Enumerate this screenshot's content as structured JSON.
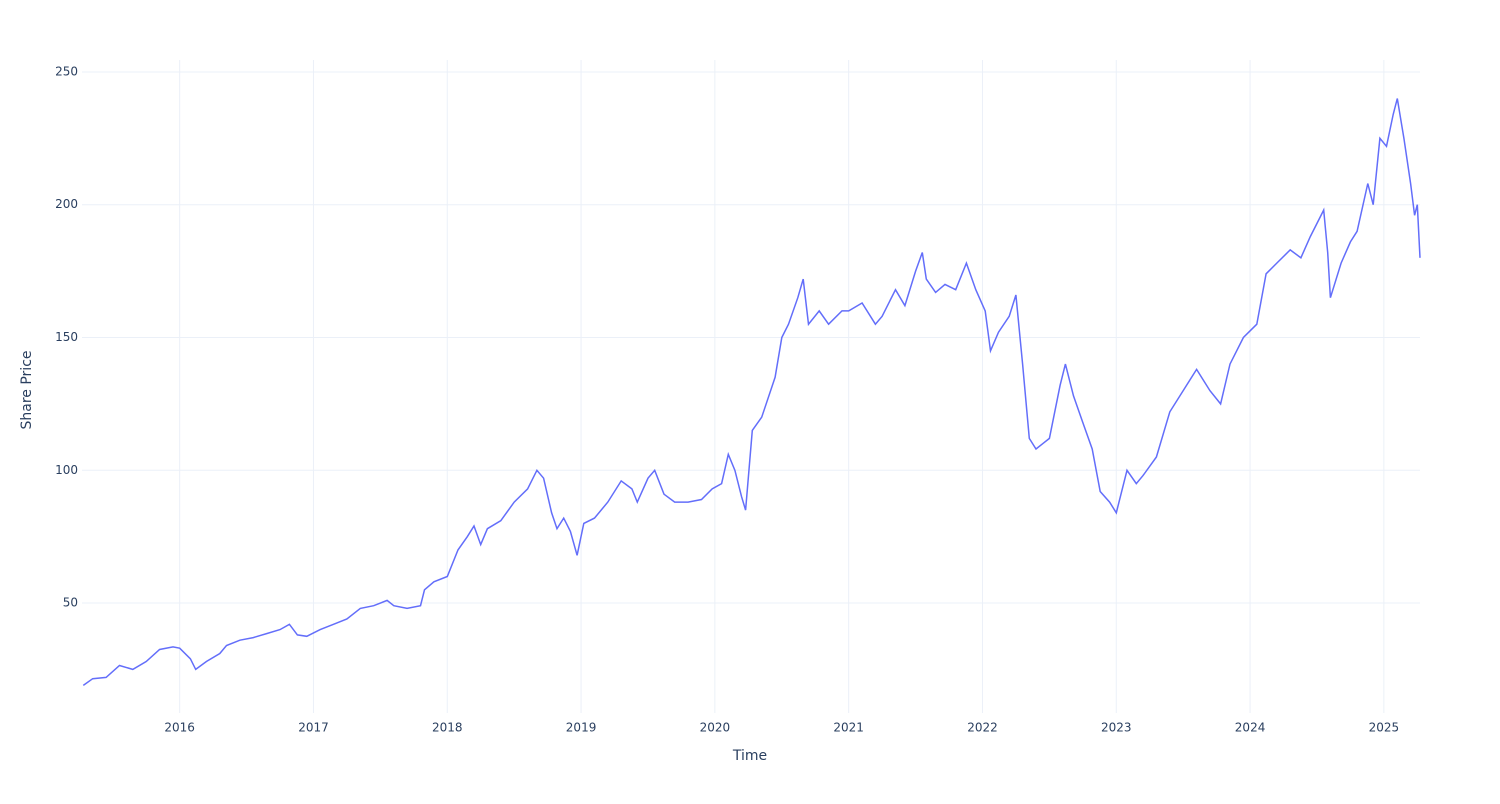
{
  "chart_data": {
    "type": "line",
    "x_label": "Time",
    "y_label": "Share Price",
    "xlim": [
      2015.27,
      2025.27
    ],
    "ylim": [
      8.6,
      254.5
    ],
    "xticks": [
      2016,
      2017,
      2018,
      2019,
      2020,
      2021,
      2022,
      2023,
      2024,
      2025
    ],
    "yticks": [
      50,
      100,
      150,
      200,
      250
    ],
    "grid": true,
    "x": [
      2015.28,
      2015.35,
      2015.45,
      2015.55,
      2015.65,
      2015.75,
      2015.85,
      2015.95,
      2016.0,
      2016.08,
      2016.12,
      2016.2,
      2016.3,
      2016.35,
      2016.45,
      2016.55,
      2016.65,
      2016.75,
      2016.82,
      2016.88,
      2016.95,
      2017.05,
      2017.15,
      2017.25,
      2017.35,
      2017.45,
      2017.55,
      2017.6,
      2017.7,
      2017.8,
      2017.83,
      2017.9,
      2018.0,
      2018.08,
      2018.15,
      2018.2,
      2018.25,
      2018.3,
      2018.4,
      2018.5,
      2018.6,
      2018.67,
      2018.72,
      2018.78,
      2018.82,
      2018.87,
      2018.92,
      2018.97,
      2019.02,
      2019.1,
      2019.2,
      2019.3,
      2019.38,
      2019.42,
      2019.5,
      2019.55,
      2019.62,
      2019.7,
      2019.8,
      2019.9,
      2019.98,
      2020.05,
      2020.1,
      2020.15,
      2020.2,
      2020.23,
      2020.28,
      2020.35,
      2020.45,
      2020.5,
      2020.55,
      2020.62,
      2020.66,
      2020.7,
      2020.78,
      2020.85,
      2020.95,
      2021.0,
      2021.1,
      2021.2,
      2021.25,
      2021.35,
      2021.42,
      2021.5,
      2021.55,
      2021.58,
      2021.65,
      2021.72,
      2021.8,
      2021.88,
      2021.95,
      2022.02,
      2022.06,
      2022.12,
      2022.2,
      2022.25,
      2022.3,
      2022.35,
      2022.4,
      2022.45,
      2022.5,
      2022.58,
      2022.62,
      2022.68,
      2022.75,
      2022.82,
      2022.88,
      2022.95,
      2023.0,
      2023.08,
      2023.15,
      2023.2,
      2023.3,
      2023.4,
      2023.5,
      2023.6,
      2023.7,
      2023.78,
      2023.85,
      2023.95,
      2024.05,
      2024.12,
      2024.2,
      2024.3,
      2024.38,
      2024.45,
      2024.52,
      2024.55,
      2024.58,
      2024.6,
      2024.68,
      2024.75,
      2024.8,
      2024.88,
      2024.92,
      2024.97,
      2025.02,
      2025.07,
      2025.1,
      2025.15,
      2025.2,
      2025.23,
      2025.25,
      2025.27
    ],
    "series": [
      {
        "color": "#636efa",
        "values": [
          19,
          21.5,
          22,
          26.5,
          25,
          28,
          32.5,
          33.5,
          33,
          29,
          25,
          28,
          31,
          34,
          36,
          37,
          38.5,
          40,
          42,
          38,
          37.5,
          40,
          42,
          44,
          48,
          49,
          51,
          49,
          48,
          49,
          55,
          58,
          60,
          70,
          75,
          79,
          72,
          78,
          81,
          88,
          93,
          100,
          97,
          84,
          78,
          82,
          77,
          68,
          80,
          82,
          88,
          96,
          93,
          88,
          97,
          100,
          91,
          88,
          88,
          89,
          93,
          95,
          106,
          100,
          90,
          85,
          115,
          120,
          135,
          150,
          155,
          165,
          172,
          155,
          160,
          155,
          160,
          160,
          163,
          155,
          158,
          168,
          162,
          175,
          182,
          172,
          167,
          170,
          168,
          178,
          168,
          160,
          145,
          152,
          158,
          166,
          140,
          112,
          108,
          110,
          112,
          132,
          140,
          128,
          118,
          108,
          92,
          88,
          84,
          100,
          95,
          98,
          105,
          122,
          130,
          138,
          130,
          125,
          140,
          150,
          155,
          174,
          178,
          183,
          180,
          188,
          195,
          198,
          182,
          165,
          178,
          186,
          190,
          208,
          200,
          225,
          222,
          234,
          240,
          225,
          208,
          196,
          200,
          180
        ]
      }
    ]
  }
}
